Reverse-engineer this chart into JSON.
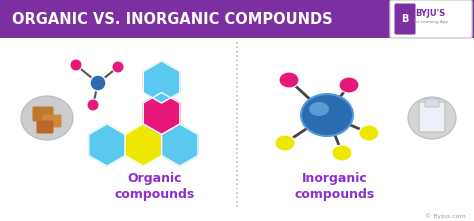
{
  "title": "ORGANIC VS. INORGANIC COMPOUNDS",
  "title_bg": "#7B2FA0",
  "title_color": "#FFFFFF",
  "body_bg": "#FFFFFF",
  "left_label": "Organic\ncompounds",
  "right_label": "Inorganic\ncompounds",
  "label_color": "#8B30CC",
  "divider_color": "#BBBBBB",
  "footer_text": "© Byjus.com",
  "footer_color": "#999999",
  "byju_box_color": "#7B2FA0",
  "hex_cyan": "#5BC8F0",
  "hex_magenta": "#E8187A",
  "hex_yellow": "#EEE800",
  "mol_blue": "#2B6CB0",
  "mol_pink": "#E8187A",
  "inorg_blue": "#2B6CB0",
  "inorg_pink": "#E8187A",
  "inorg_yellow": "#EEE800"
}
